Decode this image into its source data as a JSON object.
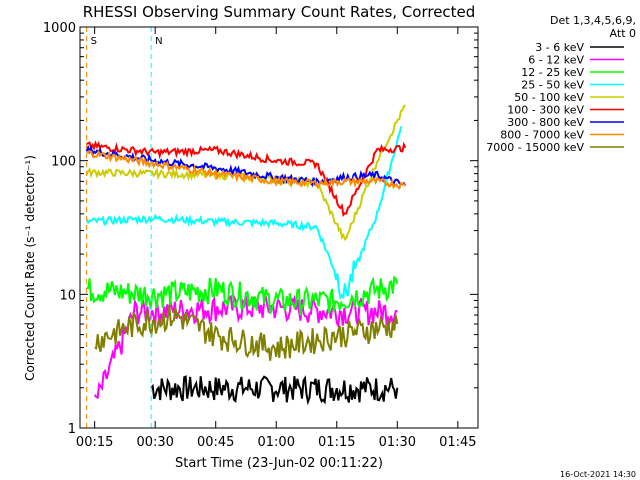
{
  "chart_data": {
    "type": "line",
    "title": "RHESSI Observing Summary Count Rates, Corrected",
    "xlabel": "Start Time (23-Jun-02 00:11:22)",
    "ylabel": "Corrected Count Rate (s⁻¹ detector⁻¹)",
    "y_scale": "log",
    "ylim": [
      1,
      1000
    ],
    "xlim_minutes": [
      "00:11:22",
      "01:50:00"
    ],
    "x_ticks": [
      "00:15",
      "00:30",
      "00:45",
      "01:00",
      "01:15",
      "01:30",
      "01:45"
    ],
    "y_ticks": [
      "1",
      "10",
      "100",
      "1000"
    ],
    "legend_header": [
      "Det 1,3,4,5,6,9,",
      "Att 0"
    ],
    "legend_placement": "right",
    "timestamp": "16-Oct-2021 14:30",
    "markers": [
      {
        "label": "S",
        "time": "00:13",
        "color": "#ff8800"
      },
      {
        "label": "N",
        "time": "00:29",
        "color": "#00ffff"
      }
    ],
    "series": [
      {
        "name": "3 - 6 keV",
        "color": "#000000",
        "x": [
          "00:29",
          "00:45",
          "01:00",
          "01:15",
          "01:30"
        ],
        "y": [
          2,
          2,
          2,
          2,
          2
        ]
      },
      {
        "name": "6 - 12 keV",
        "color": "#ff00ff",
        "x": [
          "00:15",
          "00:25",
          "00:30",
          "00:45",
          "01:00",
          "01:15",
          "01:30"
        ],
        "y": [
          1.5,
          7.5,
          7.5,
          8,
          8,
          7.5,
          7.5
        ]
      },
      {
        "name": "12 - 25 keV",
        "color": "#00ff00",
        "x": [
          "00:13",
          "00:30",
          "00:45",
          "01:00",
          "01:15",
          "01:30"
        ],
        "y": [
          11,
          10,
          11,
          9,
          9,
          12
        ]
      },
      {
        "name": "25 - 50 keV",
        "color": "#00ffff",
        "x": [
          "00:13",
          "00:30",
          "00:45",
          "01:00",
          "01:10",
          "01:17",
          "01:25",
          "01:31"
        ],
        "y": [
          35,
          37,
          35,
          34,
          32,
          10,
          40,
          180
        ]
      },
      {
        "name": "50 - 100 keV",
        "color": "#cccc00",
        "x": [
          "00:13",
          "00:30",
          "00:45",
          "01:00",
          "01:10",
          "01:17",
          "01:25",
          "01:32"
        ],
        "y": [
          82,
          80,
          78,
          72,
          68,
          25,
          100,
          260
        ]
      },
      {
        "name": "100 - 300 keV",
        "color": "#ff0000",
        "x": [
          "00:13",
          "00:30",
          "00:45",
          "01:00",
          "01:10",
          "01:17",
          "01:25",
          "01:32"
        ],
        "y": [
          130,
          115,
          120,
          100,
          95,
          40,
          120,
          125
        ]
      },
      {
        "name": "300 - 800 keV",
        "color": "#0000ff",
        "x": [
          "00:13",
          "00:30",
          "00:45",
          "01:00",
          "01:10",
          "01:17",
          "01:25",
          "01:32"
        ],
        "y": [
          120,
          100,
          88,
          75,
          70,
          75,
          78,
          65
        ]
      },
      {
        "name": "800 - 7000 keV",
        "color": "#ff8800",
        "x": [
          "00:13",
          "00:30",
          "00:45",
          "01:00",
          "01:10",
          "01:17",
          "01:25",
          "01:32"
        ],
        "y": [
          115,
          95,
          80,
          70,
          68,
          70,
          70,
          65
        ]
      },
      {
        "name": "7000 - 15000 keV",
        "color": "#808000",
        "x": [
          "00:15",
          "00:25",
          "00:35",
          "00:45",
          "01:00",
          "01:15",
          "01:30"
        ],
        "y": [
          4.5,
          6,
          7,
          5,
          4,
          5,
          6
        ]
      }
    ]
  }
}
